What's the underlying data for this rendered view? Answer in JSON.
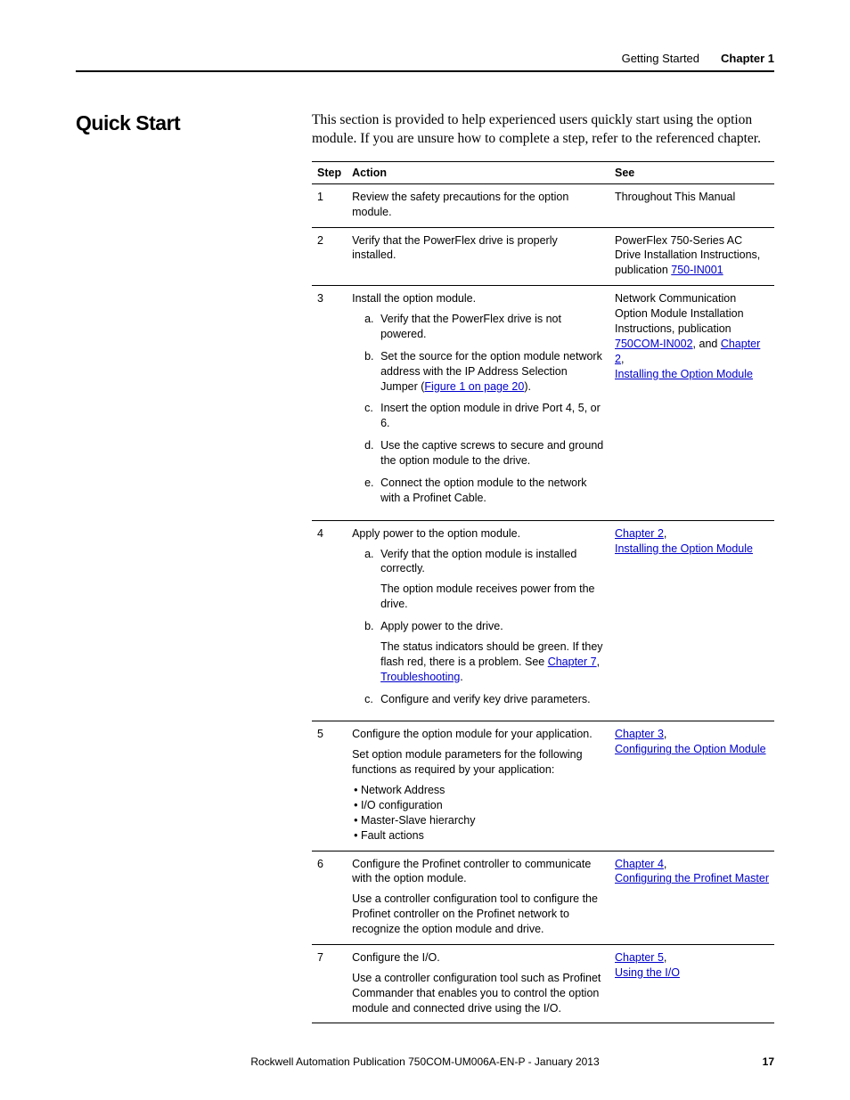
{
  "header": {
    "section": "Getting Started",
    "chapter": "Chapter 1"
  },
  "heading": "Quick Start",
  "intro": "This section is provided to help experienced users quickly start using the option module. If you are unsure how to complete a step, refer to the referenced chapter.",
  "columns": {
    "step": "Step",
    "action": "Action",
    "see": "See"
  },
  "rows": {
    "r1": {
      "num": "1",
      "action": "Review the safety precautions for the option module.",
      "see": "Throughout This Manual"
    },
    "r2": {
      "num": "2",
      "action": "Verify that the PowerFlex drive is properly installed.",
      "see_pre": "PowerFlex 750-Series AC Drive Installation Instructions, publication ",
      "see_link": "750-IN001"
    },
    "r3": {
      "num": "3",
      "action_lead": "Install the option module.",
      "a": "Verify that the PowerFlex drive is not powered.",
      "b_pre": "Set the source for the option module network address with the IP Address Selection Jumper (",
      "b_link": "Figure 1 on page 20",
      "b_post": ").",
      "c": "Insert the option module in drive Port 4, 5, or 6.",
      "d": "Use the captive screws to secure and ground the option module to the drive.",
      "e": "Connect the option module to the network with a Profinet Cable.",
      "see_pre": "Network Communication Option Module Installation Instructions, publication ",
      "see_link1": "750COM-IN002",
      "see_mid": ", and ",
      "see_link2": "Chapter 2",
      "see_comma": ", ",
      "see_link3": "Installing the Option Module"
    },
    "r4": {
      "num": "4",
      "action_lead": "Apply power to the option module.",
      "a": "Verify that the option module is installed correctly.",
      "a_sub": "The option module receives power from the drive.",
      "b": "Apply power to the drive.",
      "b_sub_pre": "The status indicators should be green. If they flash red, there is a problem. See ",
      "b_sub_link": "Chapter 7",
      "b_sub_mid": ", ",
      "b_sub_link2": "Troubleshooting",
      "b_sub_post": ".",
      "c": "Configure and verify key drive parameters.",
      "see_link1": "Chapter 2",
      "see_comma": ", ",
      "see_link2": "Installing the Option Module"
    },
    "r5": {
      "num": "5",
      "action_lead": "Configure the option module for your application.",
      "para": "Set option module parameters for the following functions as required by your application:",
      "b1": "Network Address",
      "b2": "I/O configuration",
      "b3": "Master-Slave hierarchy",
      "b4": "Fault actions",
      "see_link1": "Chapter 3",
      "see_comma": ", ",
      "see_link2": "Configuring the Option Module"
    },
    "r6": {
      "num": "6",
      "action_lead": "Configure the Profinet controller to communicate with the option module.",
      "para": "Use a controller configuration tool to configure the Profinet controller on the Profinet network to recognize the option module and drive.",
      "see_link1": "Chapter 4",
      "see_comma": ", ",
      "see_link2": "Configuring the Profinet Master"
    },
    "r7": {
      "num": "7",
      "action_lead": "Configure the I/O.",
      "para": "Use a controller configuration tool such as Profinet Commander that enables you to control the option module and connected drive using the I/O.",
      "see_link1": "Chapter 5",
      "see_comma": ", ",
      "see_link2": "Using the I/O"
    }
  },
  "footer": {
    "pub": "Rockwell Automation Publication 750COM-UM006A-EN-P - January 2013",
    "page": "17"
  },
  "colors": {
    "link": "#0000cc",
    "text": "#000000",
    "bg": "#ffffff"
  },
  "typography": {
    "body_font": "Arial",
    "intro_font": "Georgia",
    "heading_font": "Arial Black",
    "heading_size_pt": 17,
    "body_size_pt": 9.5,
    "intro_size_pt": 11.5
  }
}
